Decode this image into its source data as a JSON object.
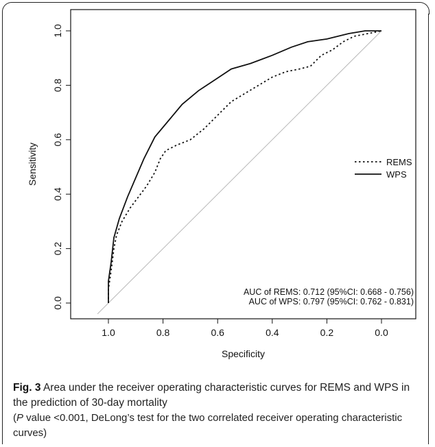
{
  "figure": {
    "label": "Fig. 3",
    "caption": "Area under the receiver operating characteristic curves for REMS and WPS in the prediction of 30-day mortality",
    "note_italic": "P",
    "note_rest": " value <0.001, DeLong’s test for the two correlated receiver operating characteristic curves)",
    "note_open": "("
  },
  "chart_data": {
    "type": "line",
    "xlabel": "Specificity",
    "ylabel": "Sensitivity",
    "xlim": [
      1.0,
      0.0
    ],
    "ylim": [
      0.0,
      1.0
    ],
    "x_reversed": true,
    "xticks": [
      "1.0",
      "0.8",
      "0.6",
      "0.4",
      "0.2",
      "0.0"
    ],
    "yticks": [
      "0.0",
      "0.2",
      "0.4",
      "0.6",
      "0.8",
      "1.0"
    ],
    "legend_position": "right",
    "grid": false,
    "annotations": [
      "AUC of REMS: 0.712 (95%CI: 0.668 - 0.756)",
      "AUC of WPS: 0.797 (95%CI: 0.762 - 0.831)"
    ],
    "series": [
      {
        "name": "REMS",
        "style": "dotted",
        "color": "#111111",
        "x": [
          1.0,
          1.0,
          0.99,
          0.98,
          0.97,
          0.95,
          0.92,
          0.89,
          0.86,
          0.83,
          0.81,
          0.79,
          0.75,
          0.7,
          0.65,
          0.6,
          0.55,
          0.5,
          0.45,
          0.4,
          0.35,
          0.3,
          0.26,
          0.22,
          0.18,
          0.14,
          0.1,
          0.05,
          0.0
        ],
        "y": [
          0.0,
          0.05,
          0.12,
          0.2,
          0.25,
          0.3,
          0.35,
          0.39,
          0.43,
          0.48,
          0.53,
          0.56,
          0.58,
          0.6,
          0.64,
          0.69,
          0.74,
          0.77,
          0.8,
          0.83,
          0.85,
          0.86,
          0.87,
          0.91,
          0.93,
          0.96,
          0.98,
          0.99,
          1.0
        ]
      },
      {
        "name": "WPS",
        "style": "solid",
        "color": "#111111",
        "x": [
          1.0,
          1.0,
          0.99,
          0.98,
          0.96,
          0.93,
          0.9,
          0.87,
          0.83,
          0.78,
          0.73,
          0.67,
          0.61,
          0.55,
          0.48,
          0.4,
          0.33,
          0.27,
          0.2,
          0.12,
          0.06,
          0.0
        ],
        "y": [
          0.0,
          0.08,
          0.15,
          0.24,
          0.31,
          0.39,
          0.46,
          0.53,
          0.61,
          0.67,
          0.73,
          0.78,
          0.82,
          0.86,
          0.88,
          0.91,
          0.94,
          0.96,
          0.97,
          0.99,
          1.0,
          1.0
        ]
      },
      {
        "name": "",
        "style": "reference",
        "color": "#b8b8b8",
        "x": [
          1.04,
          0.0
        ],
        "y": [
          -0.04,
          1.0
        ]
      }
    ]
  }
}
